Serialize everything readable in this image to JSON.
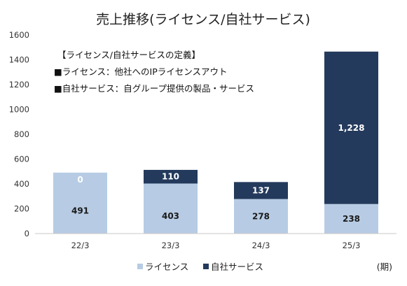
{
  "chart_data": {
    "type": "bar",
    "stacked": true,
    "title": "売上推移(ライセンス/自社サービス)",
    "categories": [
      "22/3",
      "23/3",
      "24/3",
      "25/3"
    ],
    "series": [
      {
        "name": "ライセンス",
        "values": [
          491,
          403,
          278,
          238
        ],
        "color": "#b7cce4",
        "label_color": "#1a1a1a"
      },
      {
        "name": "自社サービス",
        "values": [
          0,
          110,
          137,
          1228
        ],
        "color": "#243a5c",
        "label_color": "#ffffff"
      }
    ],
    "data_labels": {
      "ライセンス": [
        "491",
        "403",
        "278",
        "238"
      ],
      "自社サービス": [
        "0",
        "110",
        "137",
        "1,228"
      ]
    },
    "ylim": [
      0,
      1600
    ],
    "yticks": [
      0,
      200,
      400,
      600,
      800,
      1000,
      1200,
      1400,
      1600
    ],
    "xlabel": "",
    "ylabel": "",
    "grid": false,
    "legend_position": "bottom",
    "unit_note": "(期)",
    "annotation": [
      "【ライセンス/自社サービスの定義】",
      "■ライセンス：他社へのIPライセンスアウト",
      "■自社サービス：自グループ提供の製品・サービス"
    ]
  }
}
